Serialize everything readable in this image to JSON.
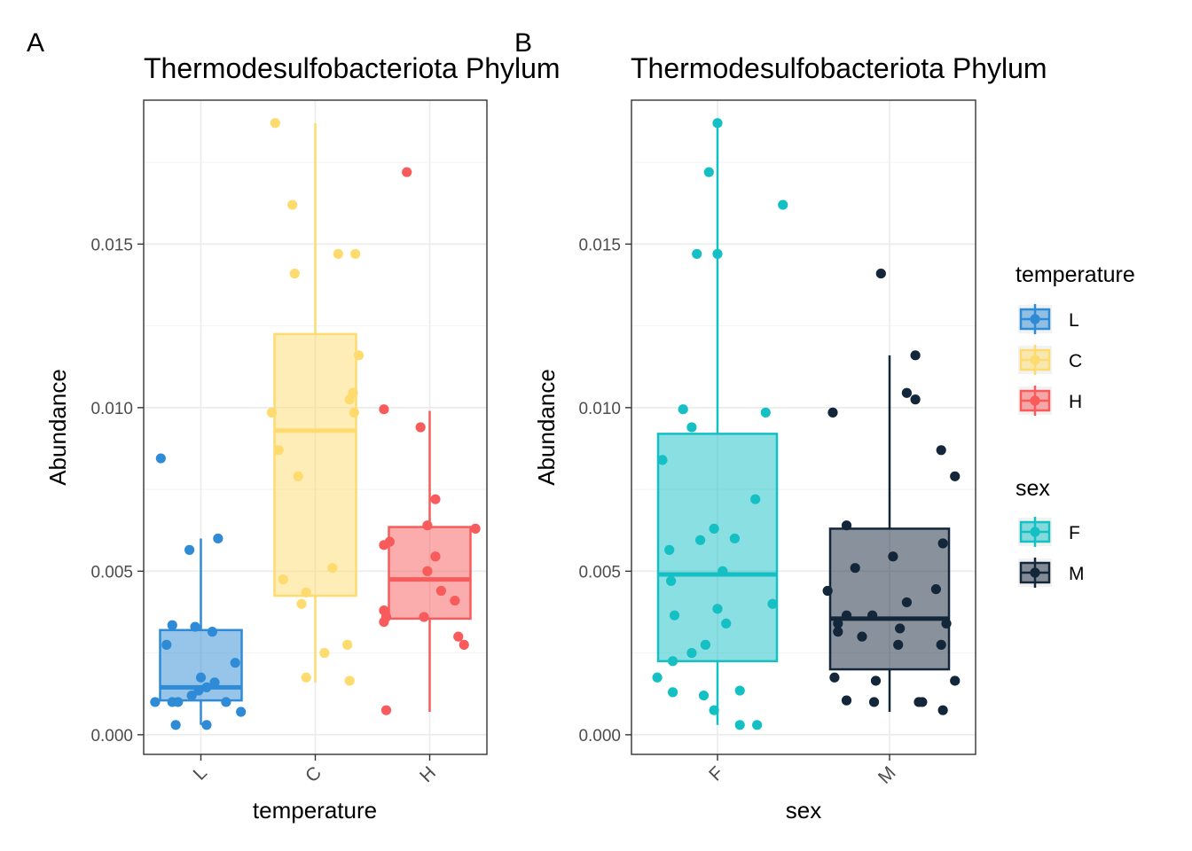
{
  "panels": [
    {
      "tag": "A",
      "chart_data": {
        "type": "box",
        "title": "Thermodesulfobacteriota Phylum",
        "xlabel": "temperature",
        "ylabel": "Abundance",
        "categories": [
          "L",
          "C",
          "H"
        ],
        "yticks": [
          0,
          0.005,
          0.01,
          0.015
        ],
        "ytick_labels": [
          "0.000",
          "0.005",
          "0.010",
          "0.015"
        ],
        "ylim": [
          -0.0006,
          0.0194
        ],
        "grid": true,
        "colors": [
          "#2f8bd6",
          "#fedb6e",
          "#f75b5b"
        ],
        "boxes": [
          {
            "name": "L",
            "q1": 0.00105,
            "median": 0.00145,
            "q3": 0.0032,
            "whisker_low": 0.0003,
            "whisker_high": 0.006
          },
          {
            "name": "C",
            "q1": 0.00425,
            "median": 0.0093,
            "q3": 0.01225,
            "whisker_low": 0.0016,
            "whisker_high": 0.0187
          },
          {
            "name": "H",
            "q1": 0.00355,
            "median": 0.00475,
            "q3": 0.00635,
            "whisker_low": 0.0007,
            "whisker_high": 0.0099
          }
        ],
        "points": [
          [
            {
              "offset": -0.35,
              "y": 0.00845
            },
            {
              "offset": 0.15,
              "y": 0.006
            },
            {
              "offset": -0.1,
              "y": 0.00565
            },
            {
              "offset": -0.25,
              "y": 0.00335
            },
            {
              "offset": -0.05,
              "y": 0.0033
            },
            {
              "offset": 0.1,
              "y": 0.00315
            },
            {
              "offset": -0.3,
              "y": 0.00275
            },
            {
              "offset": 0.3,
              "y": 0.0022
            },
            {
              "offset": 0.0,
              "y": 0.00175
            },
            {
              "offset": 0.12,
              "y": 0.0016
            },
            {
              "offset": 0.05,
              "y": 0.00145
            },
            {
              "offset": -0.02,
              "y": 0.00135
            },
            {
              "offset": -0.08,
              "y": 0.0012
            },
            {
              "offset": 0.22,
              "y": 0.001
            },
            {
              "offset": -0.4,
              "y": 0.001
            },
            {
              "offset": -0.25,
              "y": 0.001
            },
            {
              "offset": -0.2,
              "y": 0.001
            },
            {
              "offset": 0.35,
              "y": 0.0007
            },
            {
              "offset": -0.22,
              "y": 0.0003
            },
            {
              "offset": 0.05,
              "y": 0.0003
            }
          ],
          [
            {
              "offset": -0.35,
              "y": 0.0187
            },
            {
              "offset": -0.2,
              "y": 0.0162
            },
            {
              "offset": -0.18,
              "y": 0.0141
            },
            {
              "offset": 0.2,
              "y": 0.0147
            },
            {
              "offset": 0.35,
              "y": 0.0147
            },
            {
              "offset": 0.38,
              "y": 0.0116
            },
            {
              "offset": 0.33,
              "y": 0.01045
            },
            {
              "offset": 0.3,
              "y": 0.01025
            },
            {
              "offset": -0.38,
              "y": 0.00985
            },
            {
              "offset": 0.34,
              "y": 0.00985
            },
            {
              "offset": -0.32,
              "y": 0.0087
            },
            {
              "offset": -0.15,
              "y": 0.0079
            },
            {
              "offset": 0.15,
              "y": 0.0051
            },
            {
              "offset": -0.28,
              "y": 0.00475
            },
            {
              "offset": -0.08,
              "y": 0.00435
            },
            {
              "offset": -0.12,
              "y": 0.004
            },
            {
              "offset": 0.28,
              "y": 0.00275
            },
            {
              "offset": 0.08,
              "y": 0.0025
            },
            {
              "offset": -0.08,
              "y": 0.00175
            },
            {
              "offset": 0.3,
              "y": 0.00165
            }
          ],
          [
            {
              "offset": -0.2,
              "y": 0.0172
            },
            {
              "offset": -0.4,
              "y": 0.00995
            },
            {
              "offset": -0.08,
              "y": 0.0094
            },
            {
              "offset": 0.05,
              "y": 0.0072
            },
            {
              "offset": -0.02,
              "y": 0.0064
            },
            {
              "offset": 0.4,
              "y": 0.0063
            },
            {
              "offset": -0.35,
              "y": 0.0059
            },
            {
              "offset": -0.4,
              "y": 0.0058
            },
            {
              "offset": 0.05,
              "y": 0.00545
            },
            {
              "offset": -0.02,
              "y": 0.005
            },
            {
              "offset": 0.1,
              "y": 0.0044
            },
            {
              "offset": 0.22,
              "y": 0.0041
            },
            {
              "offset": -0.4,
              "y": 0.0038
            },
            {
              "offset": -0.38,
              "y": 0.0036
            },
            {
              "offset": -0.05,
              "y": 0.0036
            },
            {
              "offset": -0.4,
              "y": 0.00345
            },
            {
              "offset": 0.25,
              "y": 0.003
            },
            {
              "offset": 0.3,
              "y": 0.00275
            },
            {
              "offset": -0.38,
              "y": 0.00075
            }
          ]
        ]
      }
    },
    {
      "tag": "B",
      "chart_data": {
        "type": "box",
        "title": "Thermodesulfobacteriota Phylum",
        "xlabel": "sex",
        "ylabel": "Abundance",
        "categories": [
          "F",
          "M"
        ],
        "yticks": [
          0,
          0.005,
          0.01,
          0.015
        ],
        "ytick_labels": [
          "0.000",
          "0.005",
          "0.010",
          "0.015"
        ],
        "ylim": [
          -0.0006,
          0.0194
        ],
        "grid": true,
        "colors": [
          "#14c0c4",
          "#13263a"
        ],
        "boxes": [
          {
            "name": "F",
            "q1": 0.00225,
            "median": 0.0049,
            "q3": 0.0092,
            "whisker_low": 0.0003,
            "whisker_high": 0.0187
          },
          {
            "name": "M",
            "q1": 0.002,
            "median": 0.00355,
            "q3": 0.0063,
            "whisker_low": 0.0007,
            "whisker_high": 0.0116
          }
        ],
        "points": [
          [
            {
              "offset": 0.0,
              "y": 0.0187
            },
            {
              "offset": -0.05,
              "y": 0.0172
            },
            {
              "offset": 0.38,
              "y": 0.0162
            },
            {
              "offset": -0.12,
              "y": 0.0147
            },
            {
              "offset": 0.0,
              "y": 0.0147
            },
            {
              "offset": -0.2,
              "y": 0.00995
            },
            {
              "offset": 0.28,
              "y": 0.00985
            },
            {
              "offset": -0.15,
              "y": 0.0094
            },
            {
              "offset": -0.32,
              "y": 0.0084
            },
            {
              "offset": 0.22,
              "y": 0.0072
            },
            {
              "offset": -0.02,
              "y": 0.0063
            },
            {
              "offset": 0.1,
              "y": 0.006
            },
            {
              "offset": -0.1,
              "y": 0.00595
            },
            {
              "offset": -0.28,
              "y": 0.00565
            },
            {
              "offset": 0.03,
              "y": 0.005
            },
            {
              "offset": -0.27,
              "y": 0.0047
            },
            {
              "offset": 0.32,
              "y": 0.004
            },
            {
              "offset": -0.25,
              "y": 0.00365
            },
            {
              "offset": 0.0,
              "y": 0.00385
            },
            {
              "offset": 0.05,
              "y": 0.0034
            },
            {
              "offset": -0.07,
              "y": 0.00275
            },
            {
              "offset": -0.15,
              "y": 0.0025
            },
            {
              "offset": -0.26,
              "y": 0.00225
            },
            {
              "offset": -0.35,
              "y": 0.00175
            },
            {
              "offset": 0.13,
              "y": 0.00135
            },
            {
              "offset": -0.26,
              "y": 0.0013
            },
            {
              "offset": -0.08,
              "y": 0.0012
            },
            {
              "offset": -0.02,
              "y": 0.00075
            },
            {
              "offset": 0.13,
              "y": 0.0003
            },
            {
              "offset": 0.23,
              "y": 0.0003
            }
          ],
          [
            {
              "offset": -0.05,
              "y": 0.0141
            },
            {
              "offset": 0.15,
              "y": 0.0116
            },
            {
              "offset": 0.1,
              "y": 0.01045
            },
            {
              "offset": 0.15,
              "y": 0.01025
            },
            {
              "offset": -0.33,
              "y": 0.00985
            },
            {
              "offset": 0.3,
              "y": 0.0087
            },
            {
              "offset": 0.38,
              "y": 0.0079
            },
            {
              "offset": -0.25,
              "y": 0.0064
            },
            {
              "offset": 0.31,
              "y": 0.00585
            },
            {
              "offset": -0.2,
              "y": 0.0051
            },
            {
              "offset": 0.02,
              "y": 0.00545
            },
            {
              "offset": -0.36,
              "y": 0.0044
            },
            {
              "offset": 0.27,
              "y": 0.00445
            },
            {
              "offset": 0.1,
              "y": 0.00405
            },
            {
              "offset": -0.25,
              "y": 0.00365
            },
            {
              "offset": -0.1,
              "y": 0.00365
            },
            {
              "offset": -0.3,
              "y": 0.0034
            },
            {
              "offset": 0.33,
              "y": 0.0034
            },
            {
              "offset": -0.3,
              "y": 0.00315
            },
            {
              "offset": -0.16,
              "y": 0.003
            },
            {
              "offset": 0.06,
              "y": 0.00325
            },
            {
              "offset": 0.05,
              "y": 0.00275
            },
            {
              "offset": 0.3,
              "y": 0.00275
            },
            {
              "offset": -0.32,
              "y": 0.00175
            },
            {
              "offset": -0.08,
              "y": 0.00165
            },
            {
              "offset": 0.38,
              "y": 0.00165
            },
            {
              "offset": -0.25,
              "y": 0.00105
            },
            {
              "offset": -0.09,
              "y": 0.001
            },
            {
              "offset": 0.17,
              "y": 0.001
            },
            {
              "offset": 0.19,
              "y": 0.001
            },
            {
              "offset": 0.31,
              "y": 0.00075
            }
          ]
        ]
      }
    }
  ],
  "legends": [
    {
      "title": "temperature",
      "items": [
        {
          "label": "L",
          "color": "#2f8bd6"
        },
        {
          "label": "C",
          "color": "#fedb6e"
        },
        {
          "label": "H",
          "color": "#f75b5b"
        }
      ]
    },
    {
      "title": "sex",
      "items": [
        {
          "label": "F",
          "color": "#14c0c4"
        },
        {
          "label": "M",
          "color": "#13263a"
        }
      ]
    }
  ]
}
